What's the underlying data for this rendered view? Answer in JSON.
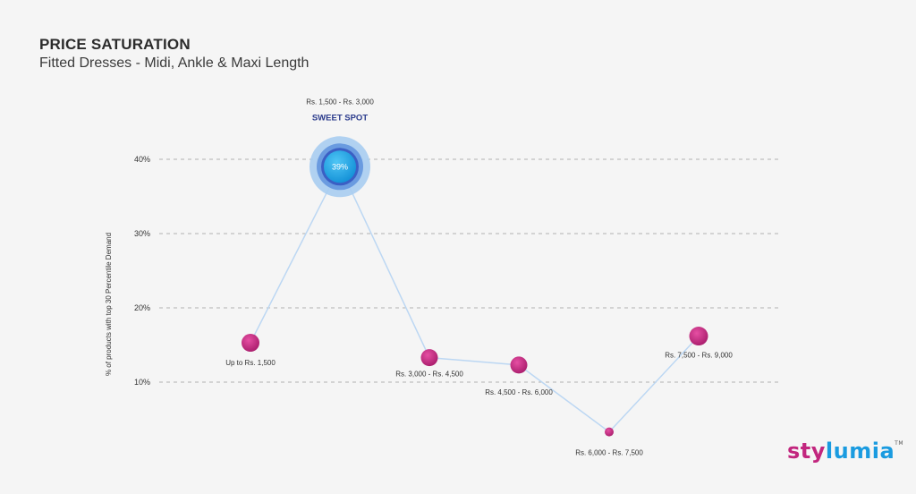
{
  "header": {
    "title": "PRICE SATURATION",
    "subtitle": "Fitted Dresses - Midi, Ankle & Maxi Length"
  },
  "logo": {
    "part1": "sty",
    "part2": "lumia",
    "tm": "TM"
  },
  "chart_data": {
    "type": "scatter",
    "ylabel": "% of products with top 30 Percentile Demand",
    "yticks": [
      10,
      20,
      30,
      40
    ],
    "ytick_labels": [
      "10%",
      "20%",
      "30%",
      "40%"
    ],
    "grid": "horizontal-dashed",
    "categories": [
      "Up to Rs. 1,500",
      "Rs. 1,500 - Rs. 3,000",
      "Rs. 3,000 - Rs. 4,500",
      "Rs. 4,500 - Rs. 6,000",
      "Rs. 6,000 - Rs. 7,500",
      "Rs. 7,500 - Rs. 9,000"
    ],
    "values": [
      15.3,
      39,
      13.3,
      12.3,
      3.3,
      16.2
    ],
    "highlight": {
      "index": 1,
      "label": "39%",
      "tag": "SWEET SPOT"
    },
    "colors": {
      "point": "#c2267e",
      "highlight": "#1a9be0",
      "line": "#bcd7f3",
      "grid": "#9a9a9a",
      "tag": "#2b3b8c"
    }
  }
}
